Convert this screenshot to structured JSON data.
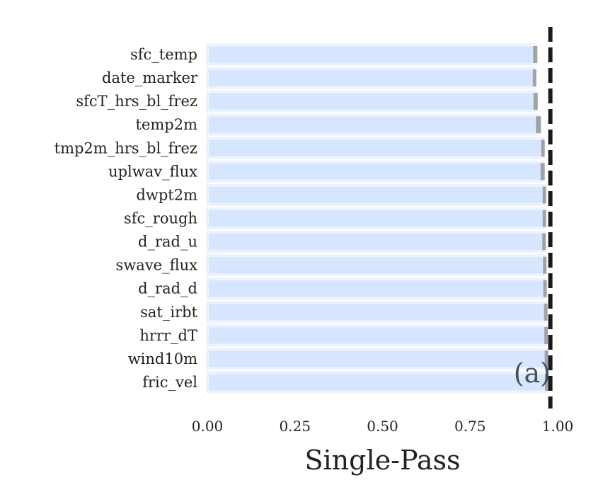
{
  "chart_data": {
    "type": "bar",
    "orientation": "horizontal",
    "categories": [
      "sfc_temp",
      "date_marker",
      "sfcT_hrs_bl_frez",
      "temp2m",
      "tmp2m_hrs_bl_frez",
      "uplwav_flux",
      "dwpt2m",
      "sfc_rough",
      "d_rad_u",
      "swave_flux",
      "d_rad_d",
      "sat_irbt",
      "hrrr_dT",
      "wind10m",
      "fric_vel"
    ],
    "values": [
      0.936,
      0.934,
      0.937,
      0.945,
      0.958,
      0.957,
      0.962,
      0.962,
      0.961,
      0.963,
      0.964,
      0.966,
      0.967,
      0.968,
      0.969
    ],
    "errors": [
      0.006,
      0.005,
      0.006,
      0.007,
      0.005,
      0.006,
      0.005,
      0.005,
      0.005,
      0.005,
      0.005,
      0.005,
      0.005,
      0.005,
      0.005
    ],
    "reference_line": 0.979,
    "xlabel": "Single-Pass",
    "ylabel": "",
    "xlim": [
      0,
      1
    ],
    "xticks": [
      "0.00",
      "0.25",
      "0.50",
      "0.75",
      "1.00"
    ],
    "panel_label": "(a)",
    "grid": false,
    "legend": "none",
    "colors": {
      "bar_fill": "#d6e6ff",
      "bar_edge": "#edf3fe",
      "error_bar": "#999999",
      "reference_line": "#1a1a1a",
      "text": "#222222"
    }
  }
}
